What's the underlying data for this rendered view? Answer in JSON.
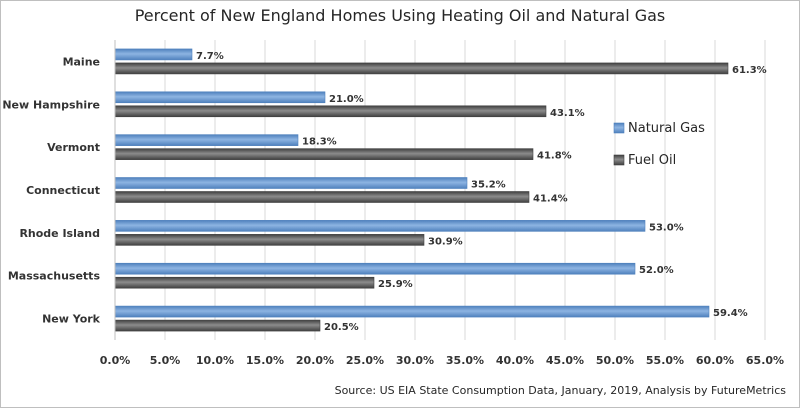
{
  "chart_data": {
    "type": "bar",
    "orientation": "horizontal",
    "title": "Percent of New England Homes Using Heating Oil and Natural Gas",
    "source": "Source: US EIA State Consumption Data, January, 2019,  Analysis by FutureMetrics",
    "categories": [
      "Maine",
      "New Hampshire",
      "Vermont",
      "Connecticut",
      "Rhode Island",
      "Massachusetts",
      "New York"
    ],
    "series": [
      {
        "name": "Natural Gas",
        "values": [
          7.7,
          21.0,
          18.3,
          35.2,
          53.0,
          52.0,
          59.4
        ],
        "labels": [
          "7.7%",
          "21.0%",
          "18.3%",
          "35.2%",
          "53.0%",
          "52.0%",
          "59.4%"
        ],
        "color": "#8db4e2",
        "color_dark": "#4f81bd"
      },
      {
        "name": "Fuel Oil",
        "values": [
          61.3,
          43.1,
          41.8,
          41.4,
          30.9,
          25.9,
          20.5
        ],
        "labels": [
          "61.3%",
          "43.1%",
          "41.8%",
          "41.4%",
          "30.9%",
          "25.9%",
          "20.5%"
        ],
        "color": "#8c8c8c",
        "color_dark": "#404040"
      }
    ],
    "xlim": [
      0,
      65
    ],
    "xticks": [
      "0.0%",
      "5.0%",
      "10.0%",
      "15.0%",
      "20.0%",
      "25.0%",
      "30.0%",
      "35.0%",
      "40.0%",
      "45.0%",
      "50.0%",
      "55.0%",
      "60.0%",
      "65.0%"
    ],
    "grid": true,
    "legend": "right"
  }
}
